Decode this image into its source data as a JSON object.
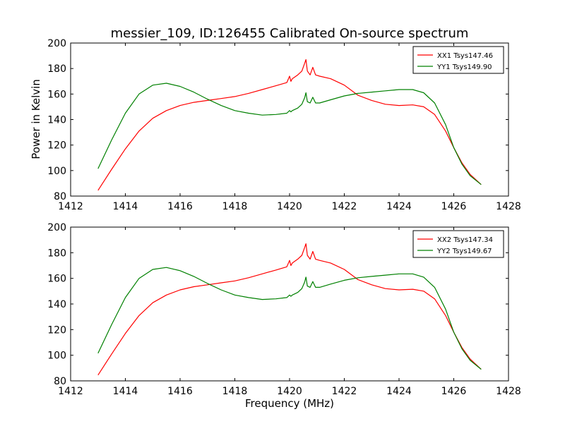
{
  "figure": {
    "title": "messier_109, ID:126455 Calibrated On-source spectrum",
    "ylabel": "Power in Kelvin",
    "xlabel": "Frequency (MHz)"
  },
  "chart_data": [
    {
      "type": "line",
      "title": "messier_109, ID:126455 Calibrated On-source spectrum",
      "xlabel": "",
      "ylabel": "Power in Kelvin",
      "xlim": [
        1412,
        1428
      ],
      "ylim": [
        80,
        200
      ],
      "xticks": [
        1412,
        1414,
        1416,
        1418,
        1420,
        1422,
        1424,
        1426,
        1428
      ],
      "yticks": [
        80,
        100,
        120,
        140,
        160,
        180,
        200
      ],
      "grid": false,
      "legend_position": "top-right",
      "series": [
        {
          "name": "XX1 Tsys147.46",
          "color": "#ff0000",
          "x": [
            1413.0,
            1413.5,
            1414.0,
            1414.5,
            1415.0,
            1415.5,
            1416.0,
            1416.5,
            1417.0,
            1417.5,
            1418.0,
            1418.5,
            1419.0,
            1419.5,
            1419.9,
            1420.0,
            1420.05,
            1420.1,
            1420.3,
            1420.45,
            1420.55,
            1420.6,
            1420.65,
            1420.75,
            1420.85,
            1420.95,
            1421.1,
            1421.5,
            1422.0,
            1422.5,
            1423.0,
            1423.5,
            1424.0,
            1424.5,
            1424.9,
            1425.3,
            1425.7,
            1426.0,
            1426.3,
            1426.6,
            1427.0
          ],
          "y": [
            84.5,
            101,
            117,
            131,
            141,
            147,
            151,
            153.5,
            155,
            156.5,
            158,
            160.5,
            163.5,
            166.5,
            169,
            174,
            170,
            172,
            175,
            178,
            184,
            187,
            178,
            175,
            181,
            175,
            174,
            172,
            167,
            159,
            155,
            152,
            151,
            151.5,
            150,
            144,
            131,
            118,
            106,
            97,
            89
          ]
        },
        {
          "name": "YY1 Tsys149.90",
          "color": "#008000",
          "x": [
            1413.0,
            1413.5,
            1414.0,
            1414.5,
            1415.0,
            1415.5,
            1416.0,
            1416.5,
            1417.0,
            1417.5,
            1418.0,
            1418.5,
            1419.0,
            1419.5,
            1419.9,
            1420.0,
            1420.05,
            1420.1,
            1420.3,
            1420.45,
            1420.55,
            1420.6,
            1420.65,
            1420.75,
            1420.85,
            1420.95,
            1421.1,
            1421.5,
            1422.0,
            1422.5,
            1423.0,
            1423.5,
            1424.0,
            1424.5,
            1424.9,
            1425.3,
            1425.7,
            1426.0,
            1426.3,
            1426.6,
            1427.0
          ],
          "y": [
            101.5,
            124,
            145,
            160,
            167,
            168.5,
            166,
            161.5,
            156,
            151,
            147,
            145,
            143.5,
            144,
            145,
            147,
            146,
            147,
            149,
            152,
            157,
            161,
            154,
            153,
            157.5,
            153,
            153,
            155.5,
            158.5,
            160.5,
            161.5,
            162.5,
            163.5,
            163.5,
            161,
            153,
            136,
            118,
            105,
            96,
            89
          ]
        }
      ]
    },
    {
      "type": "line",
      "title": "",
      "xlabel": "Frequency (MHz)",
      "ylabel": "",
      "xlim": [
        1412,
        1428
      ],
      "ylim": [
        80,
        200
      ],
      "xticks": [
        1412,
        1414,
        1416,
        1418,
        1420,
        1422,
        1424,
        1426,
        1428
      ],
      "yticks": [
        80,
        100,
        120,
        140,
        160,
        180,
        200
      ],
      "grid": false,
      "legend_position": "top-right",
      "series": [
        {
          "name": "XX2 Tsys147.34",
          "color": "#ff0000",
          "x": [
            1413.0,
            1413.5,
            1414.0,
            1414.5,
            1415.0,
            1415.5,
            1416.0,
            1416.5,
            1417.0,
            1417.5,
            1418.0,
            1418.5,
            1419.0,
            1419.5,
            1419.9,
            1420.0,
            1420.05,
            1420.1,
            1420.3,
            1420.45,
            1420.55,
            1420.6,
            1420.65,
            1420.75,
            1420.85,
            1420.95,
            1421.1,
            1421.5,
            1422.0,
            1422.5,
            1423.0,
            1423.5,
            1424.0,
            1424.5,
            1424.9,
            1425.3,
            1425.7,
            1426.0,
            1426.3,
            1426.6,
            1427.0
          ],
          "y": [
            84.5,
            101,
            117,
            131,
            141,
            147,
            151,
            153.5,
            155,
            156.5,
            158,
            160.5,
            163.5,
            166.5,
            169,
            174,
            170,
            172,
            175,
            178,
            184,
            187,
            178,
            175,
            181,
            175,
            174,
            172,
            167,
            159,
            155,
            152,
            151,
            151.5,
            150,
            144,
            131,
            118,
            106,
            97,
            89
          ]
        },
        {
          "name": "YY2 Tsys149.67",
          "color": "#008000",
          "x": [
            1413.0,
            1413.5,
            1414.0,
            1414.5,
            1415.0,
            1415.5,
            1416.0,
            1416.5,
            1417.0,
            1417.5,
            1418.0,
            1418.5,
            1419.0,
            1419.5,
            1419.9,
            1420.0,
            1420.05,
            1420.1,
            1420.3,
            1420.45,
            1420.55,
            1420.6,
            1420.65,
            1420.75,
            1420.85,
            1420.95,
            1421.1,
            1421.5,
            1422.0,
            1422.5,
            1423.0,
            1423.5,
            1424.0,
            1424.5,
            1424.9,
            1425.3,
            1425.7,
            1426.0,
            1426.3,
            1426.6,
            1427.0
          ],
          "y": [
            101.5,
            124,
            145,
            160,
            167,
            168.5,
            166,
            161.5,
            156,
            151,
            147,
            145,
            143.5,
            144,
            145,
            147,
            146,
            147,
            149,
            152,
            157,
            161,
            154,
            153,
            157.5,
            153,
            153,
            155.5,
            158.5,
            160.5,
            161.5,
            162.5,
            163.5,
            163.5,
            161,
            153,
            136,
            118,
            105,
            96,
            89
          ]
        }
      ]
    }
  ]
}
